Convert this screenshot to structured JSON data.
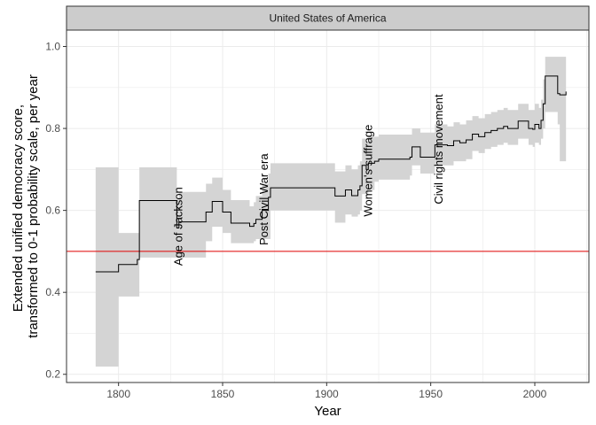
{
  "chart_data": {
    "type": "line",
    "facet_label": "United States of America",
    "xlabel": "Year",
    "ylabel_lines": [
      "Extended unified democracy score,",
      "transformed to 0-1 probability scale, per year"
    ],
    "xlim": [
      1775,
      2026
    ],
    "ylim": [
      0.18,
      1.04
    ],
    "x_ticks": [
      1800,
      1850,
      1900,
      1950,
      2000
    ],
    "y_ticks": [
      0.2,
      0.4,
      0.6,
      0.8,
      1.0
    ],
    "y_tick_labels": [
      "0.2",
      "0.4",
      "0.6",
      "0.8",
      "1.0"
    ],
    "reference_line": {
      "y": 0.5,
      "color": "#e00000"
    },
    "colors": {
      "line": "#000000",
      "ribbon": "#d4d4d4",
      "strip": "#cccccc",
      "grid": "#ebebeb",
      "border": "#333333"
    },
    "grid": true,
    "series": [
      {
        "x": [
          1789,
          1799,
          1800,
          1808,
          1809,
          1810,
          1828,
          1829,
          1841,
          1842,
          1845,
          1849,
          1850,
          1853,
          1854,
          1862,
          1863,
          1865,
          1866,
          1868,
          1869,
          1872,
          1873,
          1903,
          1904,
          1908,
          1909,
          1911,
          1912,
          1914,
          1915,
          1916,
          1917,
          1919,
          1920,
          1923,
          1925,
          1940,
          1941,
          1944,
          1945,
          1951,
          1952,
          1955,
          1958,
          1961,
          1964,
          1967,
          1970,
          1973,
          1976,
          1979,
          1982,
          1985,
          1987,
          1990,
          1992,
          1995,
          1997,
          1999,
          2000,
          2002,
          2003,
          2004,
          2005,
          2010,
          2011,
          2012,
          2015
        ],
        "y": [
          0.45,
          0.45,
          0.468,
          0.468,
          0.48,
          0.624,
          0.557,
          0.572,
          0.572,
          0.596,
          0.622,
          0.622,
          0.596,
          0.596,
          0.569,
          0.569,
          0.561,
          0.568,
          0.578,
          0.578,
          0.6,
          0.632,
          0.655,
          0.655,
          0.635,
          0.635,
          0.65,
          0.65,
          0.636,
          0.636,
          0.65,
          0.66,
          0.71,
          0.7,
          0.715,
          0.72,
          0.725,
          0.73,
          0.755,
          0.755,
          0.73,
          0.73,
          0.76,
          0.76,
          0.758,
          0.77,
          0.765,
          0.772,
          0.786,
          0.78,
          0.79,
          0.795,
          0.8,
          0.805,
          0.8,
          0.8,
          0.818,
          0.818,
          0.8,
          0.798,
          0.81,
          0.8,
          0.82,
          0.86,
          0.928,
          0.928,
          0.885,
          0.882,
          0.89
        ],
        "lower": [
          0.219,
          0.219,
          0.39,
          0.39,
          0.39,
          0.485,
          0.485,
          0.485,
          0.485,
          0.525,
          0.56,
          0.56,
          0.545,
          0.545,
          0.52,
          0.52,
          0.52,
          0.525,
          0.53,
          0.53,
          0.53,
          0.53,
          0.6,
          0.6,
          0.57,
          0.57,
          0.59,
          0.59,
          0.585,
          0.585,
          0.59,
          0.6,
          0.64,
          0.64,
          0.65,
          0.67,
          0.675,
          0.685,
          0.71,
          0.71,
          0.69,
          0.69,
          0.71,
          0.71,
          0.71,
          0.72,
          0.72,
          0.725,
          0.745,
          0.74,
          0.75,
          0.755,
          0.76,
          0.765,
          0.76,
          0.76,
          0.775,
          0.775,
          0.76,
          0.755,
          0.765,
          0.76,
          0.775,
          0.8,
          0.84,
          0.84,
          0.81,
          0.72,
          0.64
        ],
        "upper": [
          0.705,
          0.705,
          0.545,
          0.545,
          0.545,
          0.705,
          0.63,
          0.645,
          0.645,
          0.665,
          0.68,
          0.68,
          0.65,
          0.65,
          0.625,
          0.625,
          0.61,
          0.62,
          0.635,
          0.635,
          0.665,
          0.69,
          0.715,
          0.715,
          0.695,
          0.695,
          0.71,
          0.71,
          0.7,
          0.7,
          0.71,
          0.72,
          0.775,
          0.765,
          0.78,
          0.78,
          0.785,
          0.785,
          0.8,
          0.8,
          0.79,
          0.79,
          0.81,
          0.81,
          0.805,
          0.815,
          0.81,
          0.82,
          0.83,
          0.825,
          0.835,
          0.84,
          0.845,
          0.85,
          0.845,
          0.845,
          0.86,
          0.86,
          0.845,
          0.845,
          0.86,
          0.85,
          0.87,
          0.92,
          0.975,
          0.975,
          0.975,
          0.975,
          0.975
        ]
      }
    ],
    "annotations": [
      {
        "text": "Age of Jackson",
        "x": 1829,
        "y": 0.465
      },
      {
        "text": "Post Civil War era",
        "x": 1870,
        "y": 0.515
      },
      {
        "text": "Women's suffrage",
        "x": 1920,
        "y": 0.585
      },
      {
        "text": "Civil rights movement",
        "x": 1954,
        "y": 0.615
      }
    ]
  }
}
